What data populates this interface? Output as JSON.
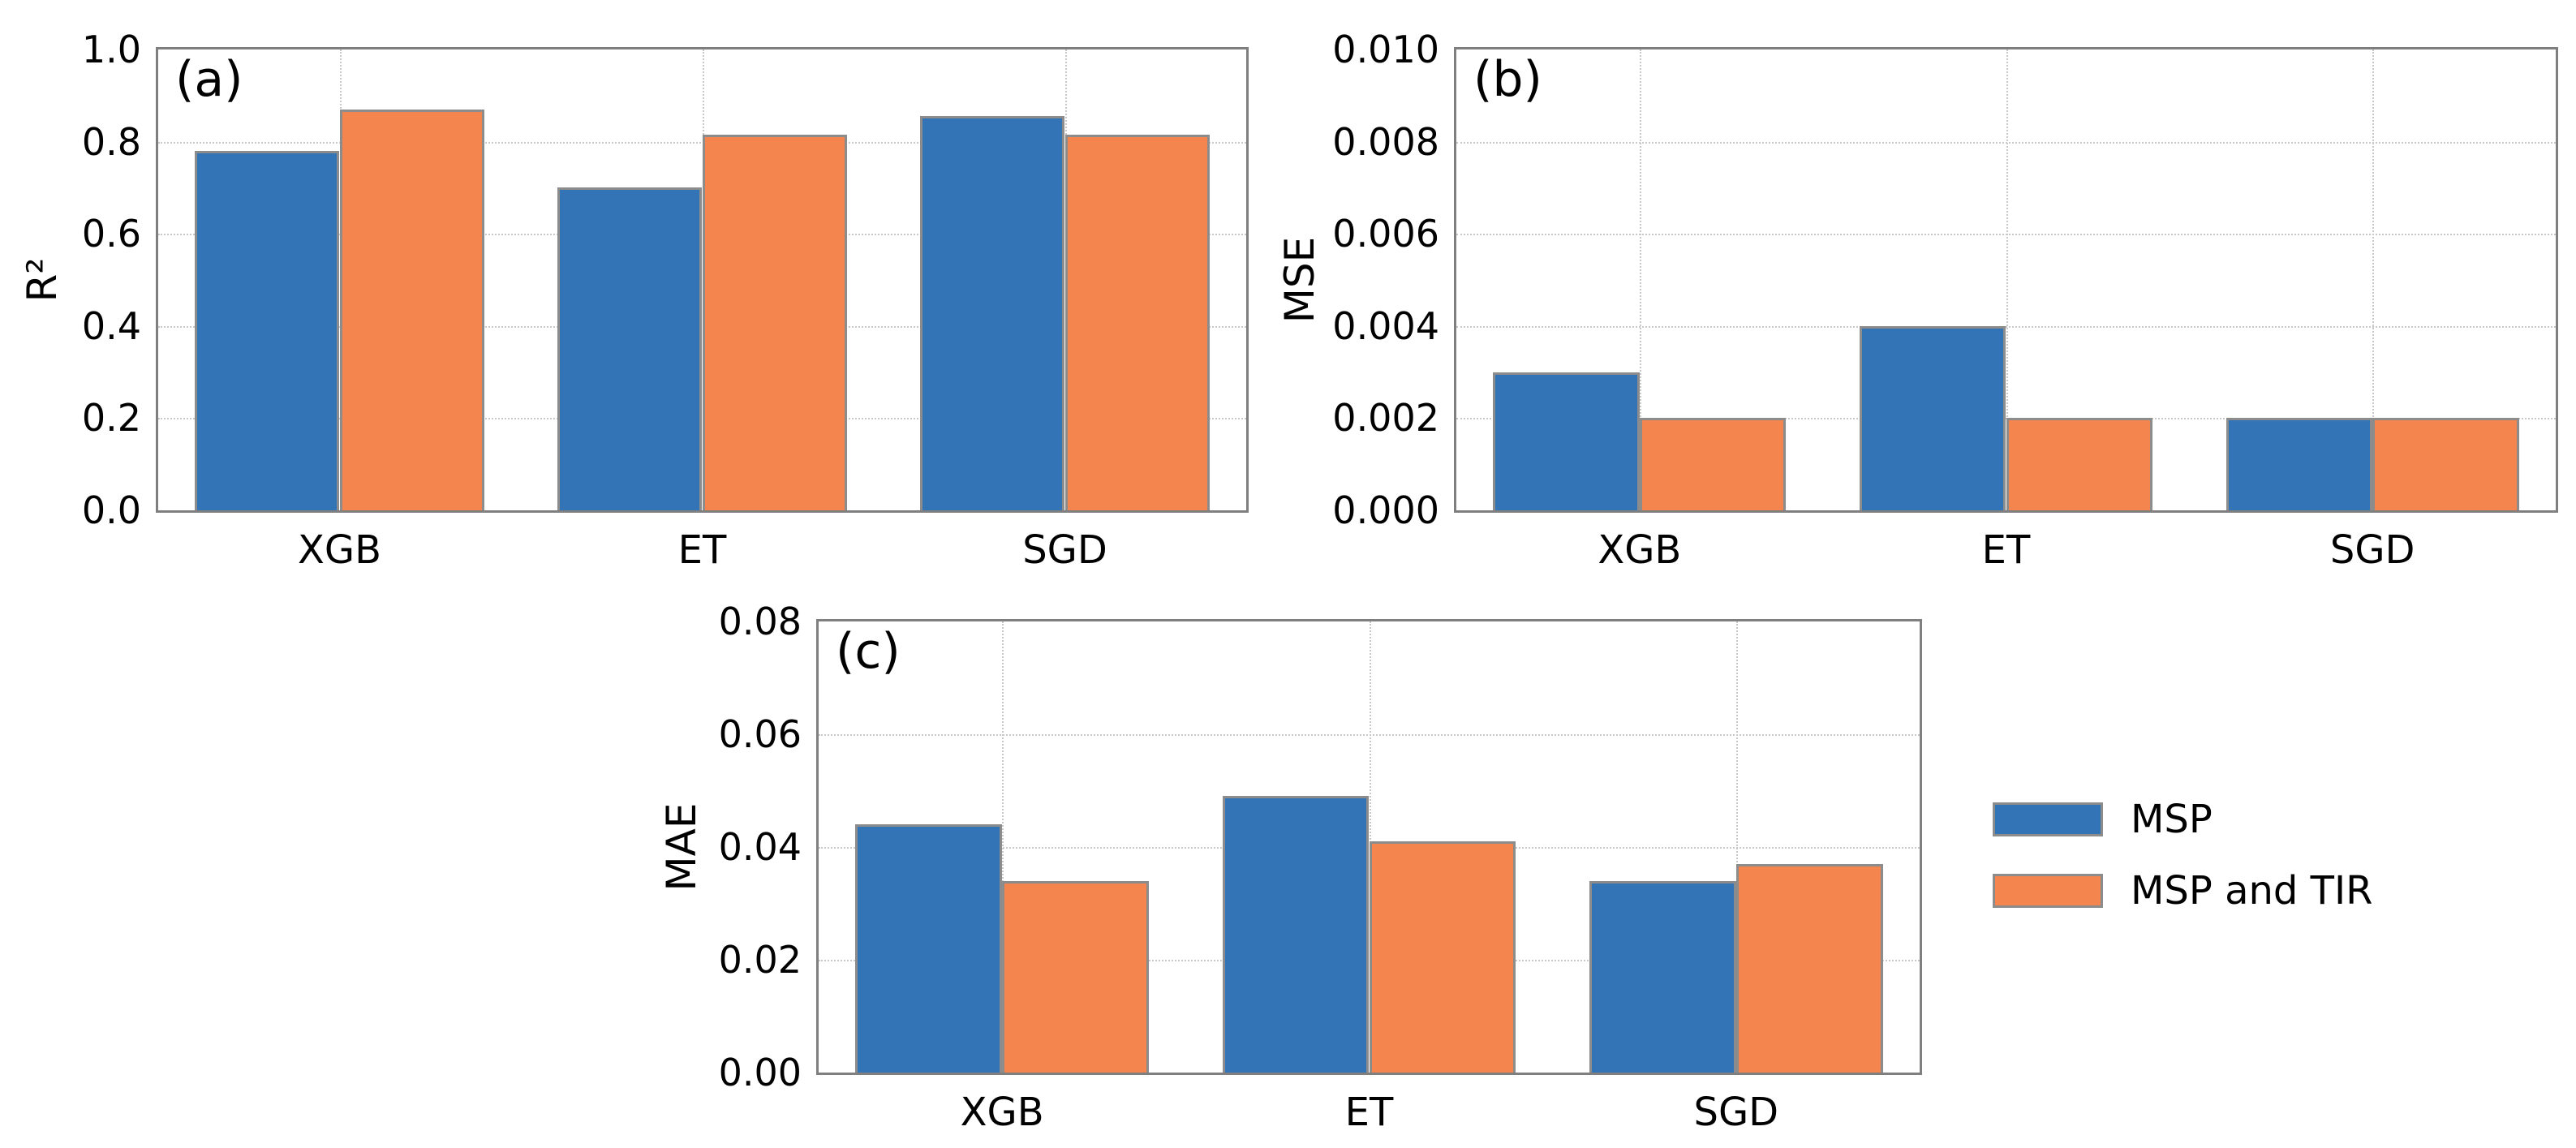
{
  "figure": {
    "background": "#ffffff",
    "text_color": "#000000",
    "series_colors": {
      "MSP": "#3274b5",
      "MSP and TIR": "#f5854e"
    },
    "bar_edge_color": "#8c8c8c",
    "axes_edge_color": "#7f7f7f",
    "grid_color": "#c8c8c8"
  },
  "legend": {
    "items": [
      {
        "label": "MSP",
        "color": "#3274b5"
      },
      {
        "label": "MSP and TIR",
        "color": "#f5854e"
      }
    ]
  },
  "chart_data": [
    {
      "type": "bar",
      "panel_label": "(a)",
      "ylabel": "R²",
      "xlabel": "",
      "categories": [
        "XGB",
        "ET",
        "SGD"
      ],
      "series": [
        {
          "name": "MSP",
          "values": [
            0.78,
            0.7,
            0.855
          ]
        },
        {
          "name": "MSP and TIR",
          "values": [
            0.87,
            0.815,
            0.815
          ]
        }
      ],
      "ylim": [
        0.0,
        1.0
      ],
      "ytick_values": [
        0.0,
        0.2,
        0.4,
        0.6,
        0.8,
        1.0
      ],
      "ytick_labels": [
        "0.0",
        "0.2",
        "0.4",
        "0.6",
        "0.8",
        "1.0"
      ],
      "grid": true,
      "legend_position": "shared-right"
    },
    {
      "type": "bar",
      "panel_label": "(b)",
      "ylabel": "MSE",
      "xlabel": "",
      "categories": [
        "XGB",
        "ET",
        "SGD"
      ],
      "series": [
        {
          "name": "MSP",
          "values": [
            0.003,
            0.004,
            0.002
          ]
        },
        {
          "name": "MSP and TIR",
          "values": [
            0.002,
            0.002,
            0.002
          ]
        }
      ],
      "ylim": [
        0.0,
        0.01
      ],
      "ytick_values": [
        0.0,
        0.002,
        0.004,
        0.006,
        0.008,
        0.01
      ],
      "ytick_labels": [
        "0.000",
        "0.002",
        "0.004",
        "0.006",
        "0.008",
        "0.010"
      ],
      "grid": true,
      "legend_position": "shared-right"
    },
    {
      "type": "bar",
      "panel_label": "(c)",
      "ylabel": "MAE",
      "xlabel": "",
      "categories": [
        "XGB",
        "ET",
        "SGD"
      ],
      "series": [
        {
          "name": "MSP",
          "values": [
            0.044,
            0.049,
            0.034
          ]
        },
        {
          "name": "MSP and TIR",
          "values": [
            0.034,
            0.041,
            0.037
          ]
        }
      ],
      "ylim": [
        0.0,
        0.08
      ],
      "ytick_values": [
        0.0,
        0.02,
        0.04,
        0.06,
        0.08
      ],
      "ytick_labels": [
        "0.00",
        "0.02",
        "0.04",
        "0.06",
        "0.08"
      ],
      "grid": true,
      "legend_position": "shared-right"
    }
  ]
}
